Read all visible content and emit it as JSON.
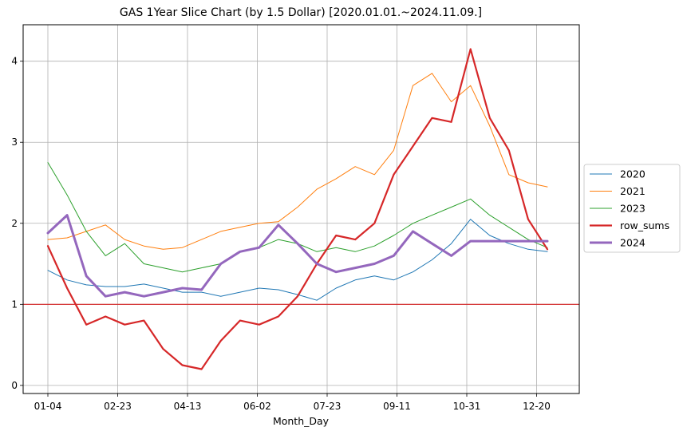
{
  "chart_data": {
    "type": "line",
    "title": "GAS 1Year Slice Chart (by 1.5 Dollar) [2020.01.01.~2024.11.09.]",
    "xlabel": "Month_Day",
    "ylabel": "",
    "x_tick_labels": [
      "01-04",
      "02-23",
      "04-13",
      "06-02",
      "07-23",
      "09-11",
      "10-31",
      "12-20"
    ],
    "x": [
      "01-04",
      "01-18",
      "02-01",
      "02-15",
      "02-29",
      "03-14",
      "03-28",
      "04-11",
      "04-25",
      "05-09",
      "05-23",
      "06-06",
      "06-20",
      "07-04",
      "07-18",
      "08-01",
      "08-15",
      "08-29",
      "09-12",
      "09-26",
      "10-10",
      "10-24",
      "11-07",
      "11-21",
      "12-05",
      "12-19",
      "12-28"
    ],
    "yticks": [
      0,
      1,
      2,
      3,
      4
    ],
    "ylim": [
      -0.1,
      4.45
    ],
    "grid": true,
    "legend_position": "center right (outside plot)",
    "reference_line": {
      "y": 1,
      "color": "#d62728"
    },
    "series": [
      {
        "name": "2020",
        "color": "#1f77b4",
        "width": 1,
        "values": [
          1.42,
          1.3,
          1.24,
          1.22,
          1.22,
          1.25,
          1.2,
          1.15,
          1.15,
          1.1,
          1.15,
          1.2,
          1.18,
          1.12,
          1.05,
          1.2,
          1.3,
          1.35,
          1.3,
          1.4,
          1.55,
          1.75,
          2.05,
          1.85,
          1.75,
          1.68,
          1.65
        ]
      },
      {
        "name": "2021",
        "color": "#ff7f0e",
        "width": 1,
        "values": [
          1.8,
          1.82,
          1.9,
          1.98,
          1.8,
          1.72,
          1.68,
          1.7,
          1.8,
          1.9,
          1.95,
          2.0,
          2.02,
          2.2,
          2.42,
          2.55,
          2.7,
          2.6,
          2.9,
          3.7,
          3.85,
          3.5,
          3.7,
          3.2,
          2.6,
          2.5,
          2.45
        ]
      },
      {
        "name": "2023",
        "color": "#2ca02c",
        "width": 1,
        "values": [
          2.75,
          2.35,
          1.9,
          1.6,
          1.75,
          1.5,
          1.45,
          1.4,
          1.45,
          1.5,
          1.65,
          1.7,
          1.8,
          1.75,
          1.65,
          1.7,
          1.65,
          1.72,
          1.85,
          2.0,
          2.1,
          2.2,
          2.3,
          2.1,
          1.95,
          1.8,
          1.7
        ]
      },
      {
        "name": "row_sums",
        "color": "#d62728",
        "width": 2.2,
        "values": [
          1.72,
          1.2,
          0.75,
          0.85,
          0.75,
          0.8,
          0.45,
          0.25,
          0.2,
          0.55,
          0.8,
          0.75,
          0.85,
          1.1,
          1.5,
          1.85,
          1.8,
          2.0,
          2.6,
          2.95,
          3.3,
          3.25,
          4.15,
          3.3,
          2.9,
          2.05,
          1.68
        ]
      },
      {
        "name": "2024",
        "color": "#9467bd",
        "width": 3,
        "values": [
          1.88,
          2.1,
          1.35,
          1.1,
          1.15,
          1.1,
          1.15,
          1.2,
          1.18,
          1.5,
          1.65,
          1.7,
          1.98,
          1.75,
          1.5,
          1.4,
          1.45,
          1.5,
          1.6,
          1.9,
          1.75,
          1.6,
          1.78,
          1.78,
          1.78,
          1.78,
          1.78
        ]
      }
    ]
  }
}
